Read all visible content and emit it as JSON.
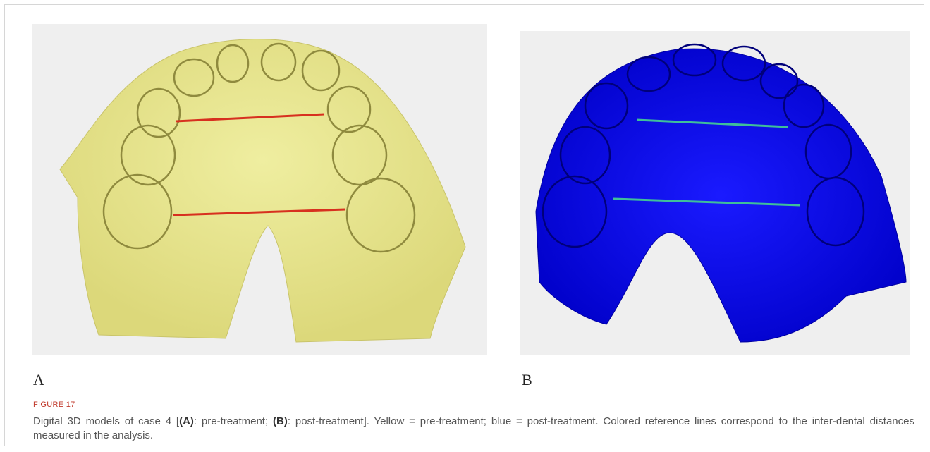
{
  "figure": {
    "panel_labels": [
      "A",
      "B"
    ],
    "label": "FIGURE 17",
    "caption_parts": [
      "Digital 3D models of case 4 [",
      "(A)",
      ": pre-treatment; ",
      "(B)",
      ": post-treatment]. Yellow = pre-treatment; blue = post-treatment. Colored reference lines correspond to the inter-dental distances measured in the analysis."
    ]
  }
}
